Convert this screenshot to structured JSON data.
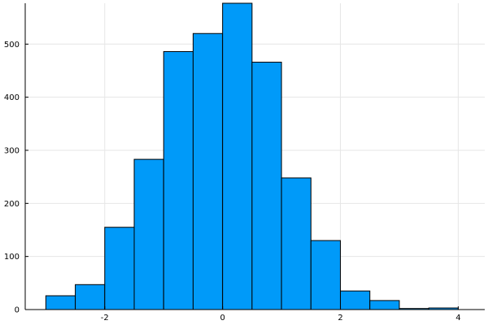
{
  "chart_data": {
    "type": "bar",
    "subtype": "histogram",
    "bin_edges": [
      -3.0,
      -2.5,
      -2.0,
      -1.5,
      -1.0,
      -0.5,
      0.0,
      0.5,
      1.0,
      1.5,
      2.0,
      2.5,
      3.0,
      3.5,
      4.0
    ],
    "values": [
      26,
      47,
      155,
      283,
      486,
      520,
      577,
      466,
      248,
      130,
      35,
      17,
      2,
      3
    ],
    "xlim": [
      -3.35,
      4.45
    ],
    "ylim": [
      0,
      577
    ],
    "x_ticks": [
      -2,
      0,
      2,
      4
    ],
    "x_tick_labels": [
      "-2",
      "0",
      "2",
      "4"
    ],
    "y_ticks": [
      0,
      100,
      200,
      300,
      400,
      500
    ],
    "y_tick_labels": [
      "0",
      "100",
      "200",
      "300",
      "400",
      "500"
    ],
    "grid": true,
    "legend": "none",
    "bar_color": "#009af9",
    "bar_edge_color": "#000000",
    "grid_color": "#e6e6e6",
    "title": "",
    "xlabel": "",
    "ylabel": ""
  }
}
